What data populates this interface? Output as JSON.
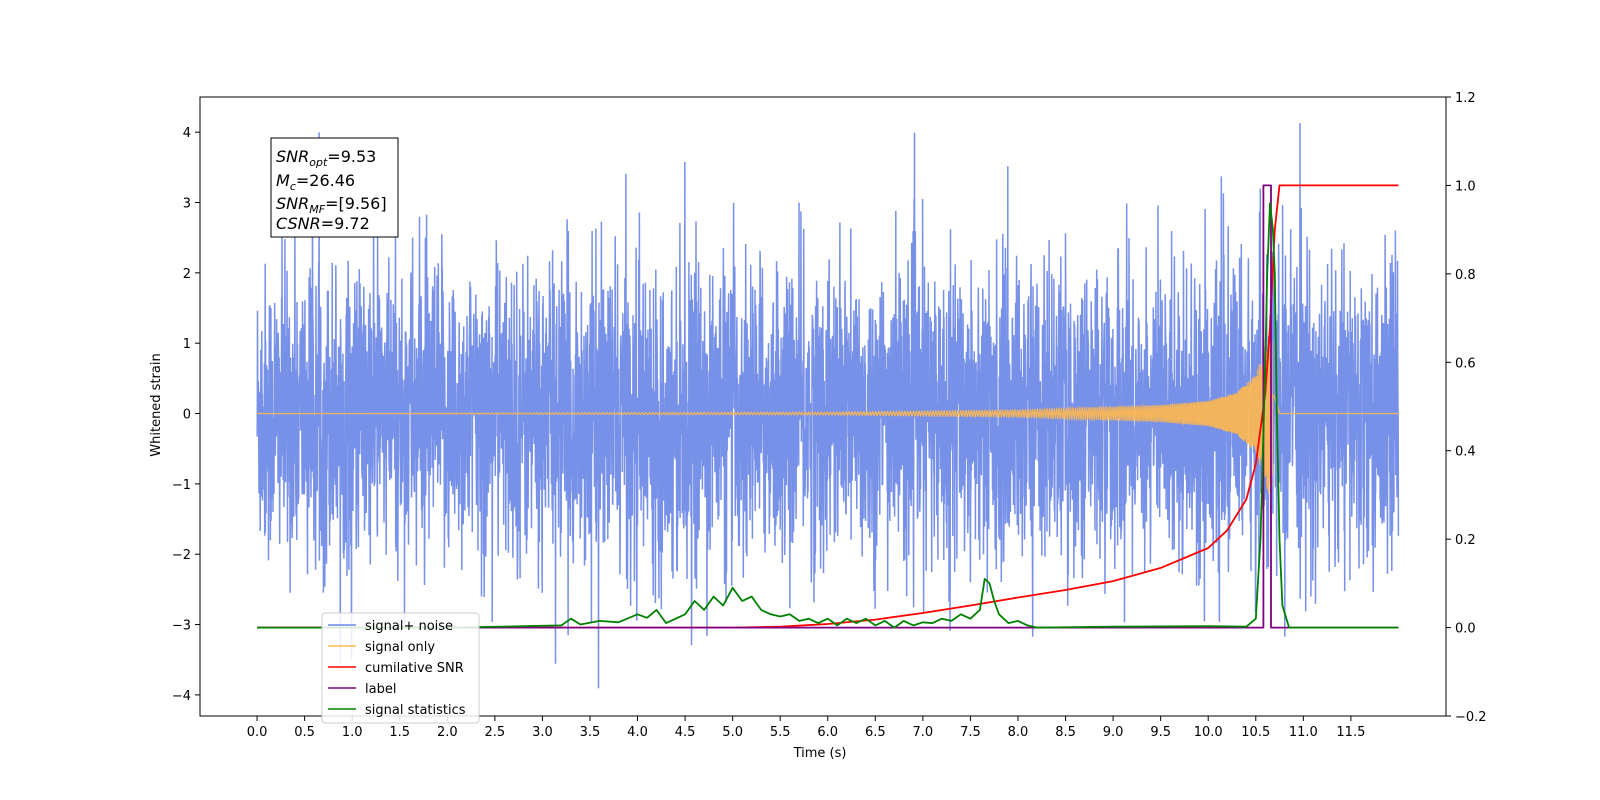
{
  "chart_data": {
    "type": "line",
    "xlabel": "Time (s)",
    "ylabel": "Whitened strain",
    "xlim": [
      -0.6,
      12.5
    ],
    "ylim": [
      -4.3,
      4.5
    ],
    "y2lim": [
      -0.2,
      1.2
    ],
    "x_ticks": [
      "0.0",
      "0.5",
      "1.0",
      "1.5",
      "2.0",
      "2.5",
      "3.0",
      "3.5",
      "4.0",
      "4.5",
      "5.0",
      "5.5",
      "6.0",
      "6.5",
      "7.0",
      "7.5",
      "8.0",
      "8.5",
      "9.0",
      "9.5",
      "10.0",
      "10.5",
      "11.0",
      "11.5"
    ],
    "y_ticks": [
      "−4",
      "−3",
      "−2",
      "−1",
      "0",
      "1",
      "2",
      "3",
      "4"
    ],
    "y2_ticks": [
      "−0.2",
      "0.0",
      "0.2",
      "0.4",
      "0.6",
      "0.8",
      "1.0",
      "1.2"
    ],
    "grid": false,
    "legend_position": "lower-left",
    "annotation": {
      "line1_main": "SNR",
      "line1_sub": "opt",
      "line1_val": "=9.53",
      "line2_main": "M",
      "line2_sub": "c",
      "line2_val": "=26.46",
      "line3_main": "SNR",
      "line3_sub": "MF",
      "line3_val": "=[9.56]",
      "line4_main": "CSNR",
      "line4_val": "=9.72"
    },
    "series": [
      {
        "name": "signal+ noise",
        "color": "#6b88e6",
        "axis": "left",
        "kind": "noise",
        "x_range": [
          0.0,
          12.0
        ],
        "mean": 0.0,
        "approx_envelope": [
          -3.9,
          4.13
        ]
      },
      {
        "name": "signal only",
        "color": "#ffb84d",
        "axis": "left",
        "kind": "chirp",
        "x_range": [
          0.0,
          12.0
        ],
        "t_merger": 10.68,
        "amplitude": {
          "x": [
            0.0,
            6.0,
            8.0,
            9.5,
            10.0,
            10.3,
            10.5,
            10.65,
            10.7,
            10.75,
            12.0
          ],
          "y": [
            0.0,
            0.02,
            0.05,
            0.12,
            0.18,
            0.3,
            0.55,
            1.2,
            0.9,
            0.0,
            0.0
          ]
        }
      },
      {
        "name": "cumilative SNR",
        "color": "#ff0000",
        "axis": "right",
        "kind": "line",
        "x": [
          0.0,
          5.0,
          5.5,
          6.0,
          6.5,
          7.0,
          7.5,
          8.0,
          8.5,
          9.0,
          9.5,
          10.0,
          10.2,
          10.4,
          10.5,
          10.6,
          10.65,
          10.7,
          10.75,
          12.0
        ],
        "y": [
          0.0,
          0.0,
          0.002,
          0.008,
          0.018,
          0.033,
          0.05,
          0.068,
          0.085,
          0.105,
          0.135,
          0.18,
          0.22,
          0.29,
          0.37,
          0.53,
          0.68,
          0.9,
          1.0,
          1.0
        ]
      },
      {
        "name": "label",
        "color": "#800080",
        "axis": "right",
        "kind": "step",
        "x": [
          0.0,
          10.58,
          10.58,
          10.66,
          10.66,
          10.75,
          10.75,
          12.0
        ],
        "y": [
          0.0,
          0.0,
          1.0,
          1.0,
          0.0,
          0.0,
          0.0,
          0.0
        ]
      },
      {
        "name": "signal statistics",
        "color": "#008000",
        "axis": "right",
        "kind": "line",
        "x": [
          0.0,
          1.0,
          2.0,
          2.8,
          3.2,
          3.3,
          3.4,
          3.6,
          3.8,
          4.0,
          4.1,
          4.2,
          4.3,
          4.5,
          4.6,
          4.7,
          4.8,
          4.9,
          5.0,
          5.05,
          5.1,
          5.2,
          5.3,
          5.4,
          5.5,
          5.6,
          5.7,
          5.8,
          5.9,
          6.0,
          6.1,
          6.2,
          6.3,
          6.4,
          6.5,
          6.6,
          6.7,
          6.8,
          6.9,
          7.0,
          7.1,
          7.2,
          7.3,
          7.4,
          7.5,
          7.6,
          7.65,
          7.7,
          7.75,
          7.8,
          7.9,
          8.0,
          8.1,
          8.2,
          9.0,
          10.0,
          10.4,
          10.5,
          10.55,
          10.6,
          10.62,
          10.65,
          10.68,
          10.7,
          10.72,
          10.75,
          10.78,
          10.85,
          12.0
        ],
        "y": [
          0.0,
          0.0,
          0.0,
          0.003,
          0.005,
          0.02,
          0.007,
          0.015,
          0.012,
          0.03,
          0.022,
          0.04,
          0.01,
          0.03,
          0.06,
          0.04,
          0.07,
          0.05,
          0.09,
          0.075,
          0.06,
          0.07,
          0.04,
          0.03,
          0.025,
          0.03,
          0.015,
          0.02,
          0.01,
          0.02,
          0.005,
          0.02,
          0.01,
          0.02,
          0.005,
          0.015,
          0.0,
          0.015,
          0.005,
          0.012,
          0.01,
          0.02,
          0.015,
          0.03,
          0.02,
          0.04,
          0.11,
          0.1,
          0.06,
          0.03,
          0.01,
          0.015,
          0.005,
          0.0,
          0.002,
          0.003,
          0.002,
          0.02,
          0.2,
          0.6,
          0.8,
          0.96,
          0.9,
          0.8,
          0.5,
          0.2,
          0.05,
          0.0,
          0.0
        ]
      }
    ]
  }
}
